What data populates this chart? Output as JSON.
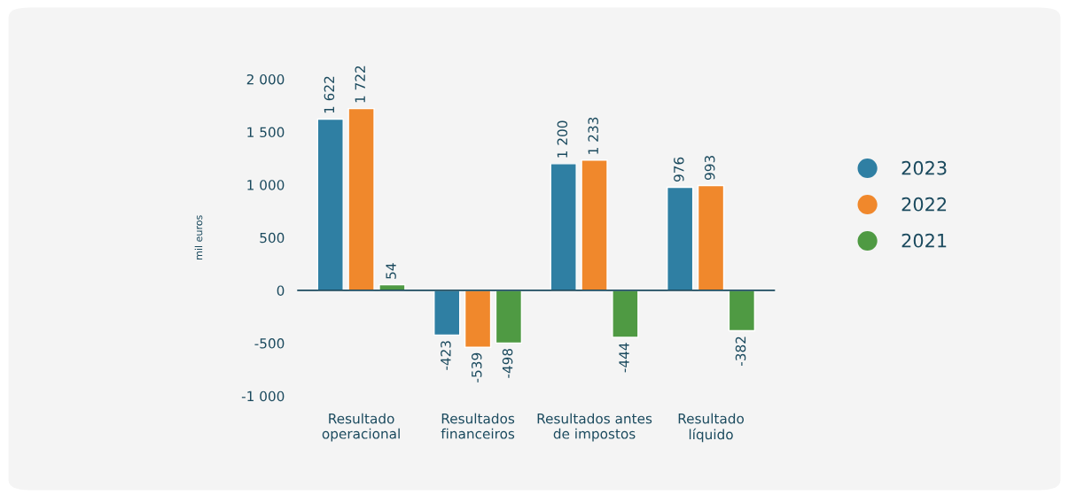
{
  "chart_data": {
    "type": "bar",
    "ylabel": "mil euros",
    "categories": [
      "Resultado\noperacional",
      "Resultados\nfinanceiros",
      "Resultados antes\nde impostos",
      "Resultado\nlíquido"
    ],
    "series": [
      {
        "name": "2023",
        "color": "#2f7fa3",
        "values": [
          1622,
          -423,
          1200,
          976
        ],
        "value_labels": [
          "1 622",
          "-423",
          "1 200",
          "976"
        ]
      },
      {
        "name": "2022",
        "color": "#f0882c",
        "values": [
          1722,
          -539,
          1233,
          993
        ],
        "value_labels": [
          "1 722",
          "-539",
          "1 233",
          "993"
        ]
      },
      {
        "name": "2021",
        "color": "#4f9a43",
        "values": [
          54,
          -498,
          -444,
          -382
        ],
        "value_labels": [
          "54",
          "-498",
          "-444",
          "-382"
        ]
      }
    ],
    "ylim": [
      -1000,
      2000
    ],
    "yticks": [
      {
        "value": 2000,
        "label": "2 000"
      },
      {
        "value": 1500,
        "label": "1 500"
      },
      {
        "value": 1000,
        "label": "1 000"
      },
      500,
      0,
      -500,
      {
        "value": -1000,
        "label": "-1 000"
      }
    ],
    "ref_lines": [
      {
        "axis": "y",
        "value": 0,
        "color": "#1b4a5e"
      }
    ],
    "legend": "right",
    "grid": false
  }
}
